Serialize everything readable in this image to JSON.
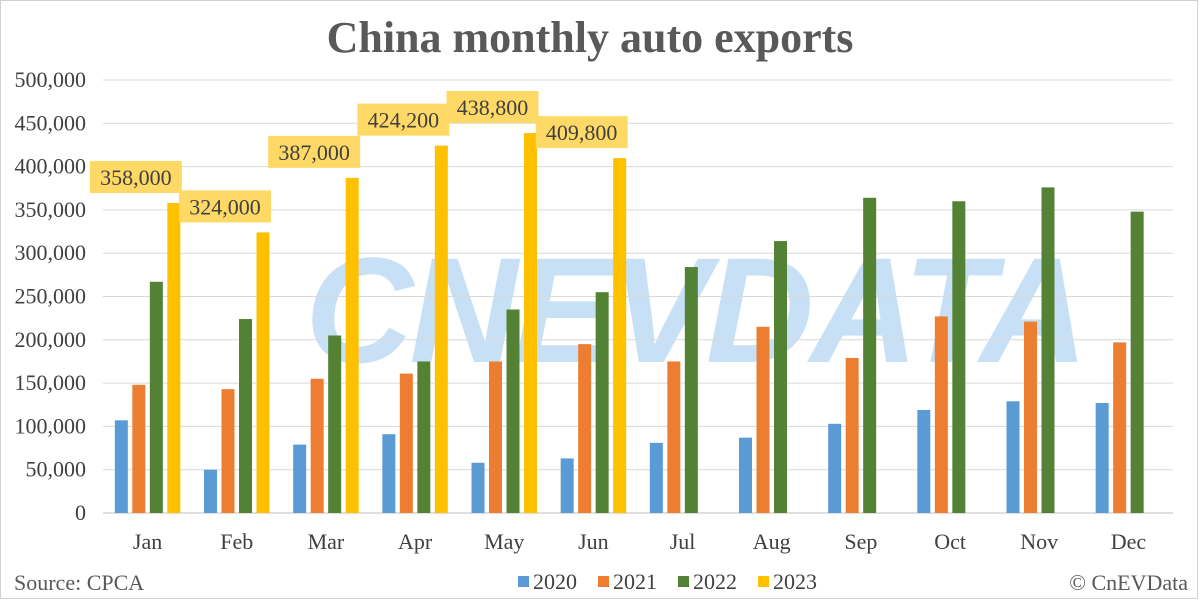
{
  "chart_data": {
    "type": "bar",
    "title": "China monthly auto exports",
    "categories": [
      "Jan",
      "Feb",
      "Mar",
      "Apr",
      "May",
      "Jun",
      "Jul",
      "Aug",
      "Sep",
      "Oct",
      "Nov",
      "Dec"
    ],
    "series": [
      {
        "name": "2020",
        "color": "#5b9bd5",
        "values": [
          107000,
          50000,
          79000,
          91000,
          58000,
          63000,
          81000,
          87000,
          103000,
          119000,
          129000,
          127000
        ]
      },
      {
        "name": "2021",
        "color": "#ed7d31",
        "values": [
          148000,
          143000,
          155000,
          161000,
          175000,
          195000,
          175000,
          215000,
          179000,
          227000,
          221000,
          197000
        ]
      },
      {
        "name": "2022",
        "color": "#548235",
        "values": [
          267000,
          224000,
          205000,
          175000,
          235000,
          255000,
          284000,
          314000,
          364000,
          360000,
          376000,
          348000
        ]
      },
      {
        "name": "2023",
        "color": "#ffc000",
        "values": [
          358000,
          324000,
          387000,
          424200,
          438800,
          409800,
          null,
          null,
          null,
          null,
          null,
          null
        ]
      }
    ],
    "data_labels": {
      "series": "2023",
      "texts": [
        "358,000",
        "324,000",
        "387,000",
        "424,200",
        "438,800",
        "409,800"
      ],
      "background": "#ffd966"
    },
    "y_ticks": [
      "0",
      "50,000",
      "100,000",
      "150,000",
      "200,000",
      "250,000",
      "300,000",
      "350,000",
      "400,000",
      "450,000",
      "500,000"
    ],
    "ylim": [
      0,
      500000
    ],
    "xlabel": "",
    "ylabel": "",
    "grid": true,
    "legend": "bottom-center"
  },
  "footer": {
    "source": "Source: CPCA",
    "copyright": "© CnEVData"
  },
  "watermark": "CNEVDATA"
}
